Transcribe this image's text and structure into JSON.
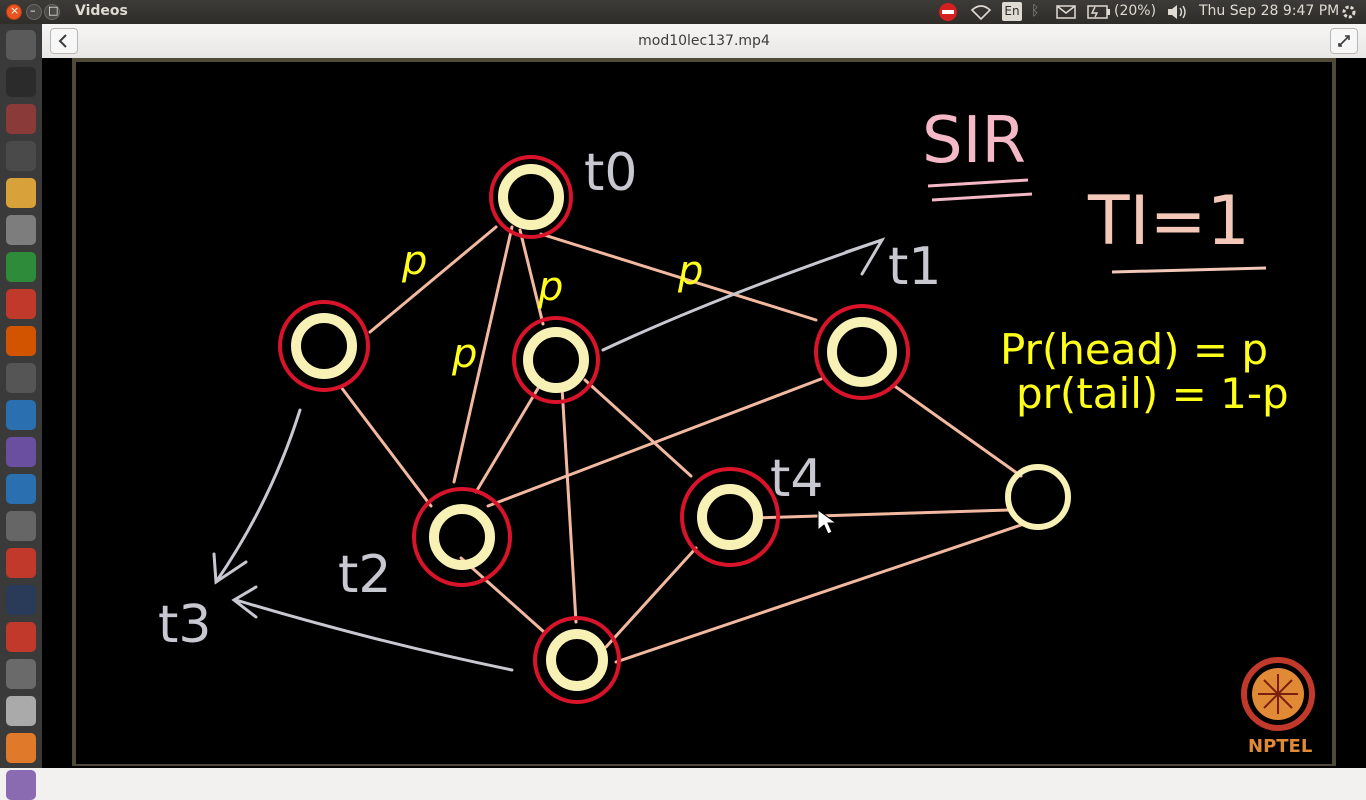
{
  "window": {
    "app_title": "Videos",
    "file_title": "mod10lec137.mp4"
  },
  "tray": {
    "keyboard_layout": "En",
    "battery": "(20%)",
    "datetime": "Thu Sep 28  9:47 PM"
  },
  "launcher": {
    "icons": [
      "dash-icon",
      "terminal-icon",
      "files-icon",
      "sublime-text-icon",
      "chrome-icon",
      "settings-icon",
      "spreadsheet-icon",
      "reader-icon",
      "presentation-icon",
      "video-editor-icon",
      "r-studio-icon",
      "media-player-icon",
      "document-icon",
      "text-editor-icon",
      "gmail-icon",
      "ipython-icon",
      "opera-icon",
      "gp-icon",
      "drive-icon",
      "archive-icon",
      "printer-icon"
    ]
  },
  "lecture": {
    "title": "SIR",
    "infection_time": "TI=1",
    "prob_head": "Pr(head) = p",
    "prob_tail": "pr(tail) = 1-p",
    "time_labels": [
      "t0",
      "t1",
      "t2",
      "t3",
      "t4"
    ],
    "edge_prob_label": "p",
    "logo_text": "NPTEL"
  },
  "colors": {
    "node_fill": "#f8f1b5",
    "infected_ring": "#d9142a",
    "edge": "#f2b9a0",
    "arrow": "#c8c8d0",
    "annotation_yellow": "#ffff1a",
    "title_pink": "#f4b8c6",
    "nptel": "#e08a36"
  }
}
